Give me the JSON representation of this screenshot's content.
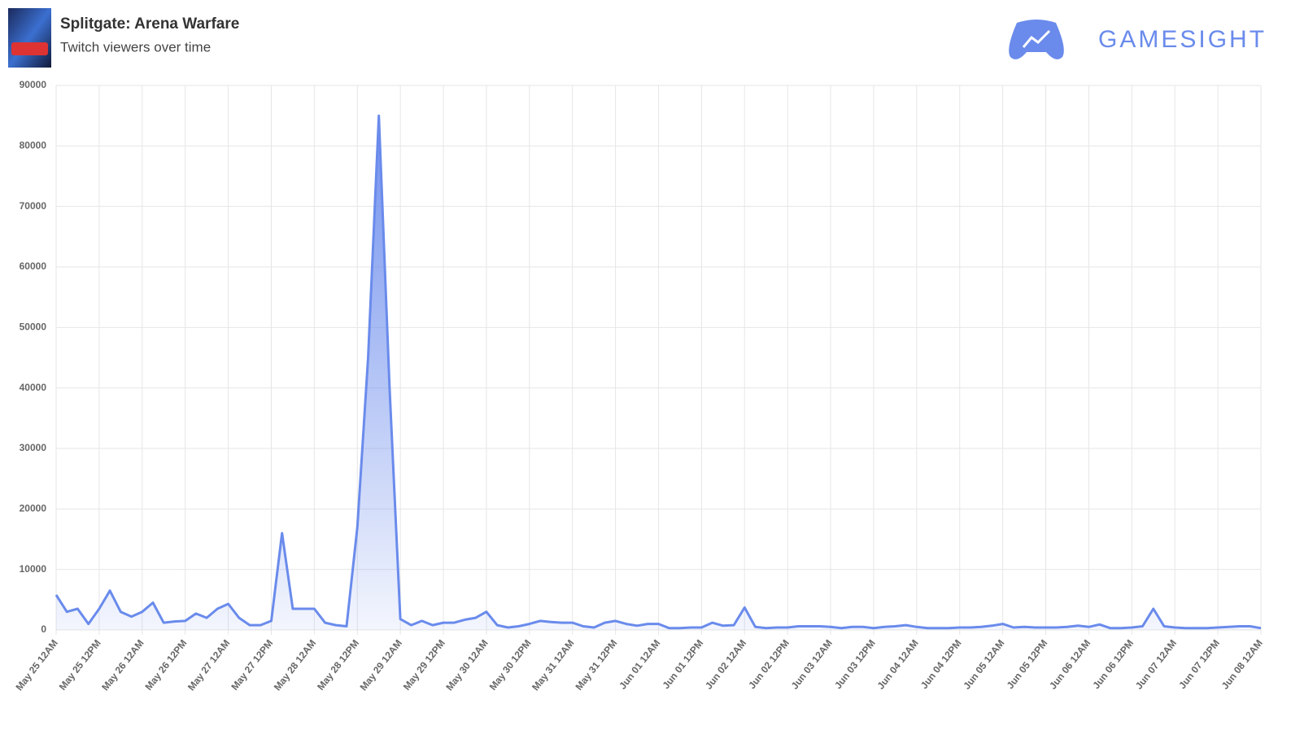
{
  "brand": "GAMESIGHT",
  "chart_data": {
    "type": "line",
    "title": "Splitgate: Arena Warfare",
    "subtitle": "Twitch viewers over time",
    "categories": [
      "May 25 12AM",
      null,
      null,
      null,
      "May 25 12PM",
      null,
      null,
      null,
      "May 26 12AM",
      null,
      null,
      null,
      "May 26 12PM",
      null,
      null,
      null,
      "May 27 12AM",
      null,
      null,
      null,
      "May 27 12PM",
      null,
      null,
      null,
      "May 28 12AM",
      null,
      null,
      null,
      "May 28 12PM",
      null,
      null,
      null,
      "May 29 12AM",
      null,
      null,
      null,
      "May 29 12PM",
      null,
      null,
      null,
      "May 30 12AM",
      null,
      null,
      null,
      "May 30 12PM",
      null,
      null,
      null,
      "May 31 12AM",
      null,
      null,
      null,
      "May 31 12PM",
      null,
      null,
      null,
      "Jun 01 12AM",
      null,
      null,
      null,
      "Jun 01 12PM",
      null,
      null,
      null,
      "Jun 02 12AM",
      null,
      null,
      null,
      "Jun 02 12PM",
      null,
      null,
      null,
      "Jun 03 12AM",
      null,
      null,
      null,
      "Jun 03 12PM",
      null,
      null,
      null,
      "Jun 04 12AM",
      null,
      null,
      null,
      "Jun 04 12PM",
      null,
      null,
      null,
      "Jun 05 12AM",
      null,
      null,
      null,
      "Jun 05 12PM",
      null,
      null,
      null,
      "Jun 06 12AM",
      null,
      null,
      null,
      "Jun 06 12PM",
      null,
      null,
      null,
      "Jun 07 12AM",
      null,
      null,
      null,
      "Jun 07 12PM",
      null,
      null,
      null,
      "Jun 08 12AM"
    ],
    "values": [
      5800,
      3000,
      3500,
      1000,
      3500,
      6500,
      3000,
      2200,
      3000,
      4500,
      1200,
      1400,
      1500,
      2700,
      2000,
      3500,
      4300,
      2000,
      800,
      800,
      1500,
      16000,
      3500,
      3500,
      3500,
      1200,
      800,
      600,
      17000,
      45000,
      85000,
      40000,
      1800,
      800,
      1500,
      800,
      1200,
      1200,
      1700,
      2000,
      3000,
      800,
      400,
      600,
      1000,
      1500,
      1300,
      1200,
      1200,
      600,
      400,
      1200,
      1500,
      1000,
      700,
      1000,
      1000,
      300,
      300,
      400,
      400,
      1200,
      700,
      800,
      3700,
      500,
      300,
      400,
      400,
      600,
      600,
      600,
      500,
      300,
      500,
      500,
      300,
      500,
      600,
      800,
      500,
      300,
      300,
      300,
      400,
      400,
      500,
      700,
      1000,
      400,
      500,
      400,
      400,
      400,
      500,
      700,
      500,
      900,
      300,
      300,
      400,
      600,
      3500,
      600,
      400,
      300,
      300,
      300,
      400,
      500,
      600,
      600,
      300
    ],
    "color": "#6a8bec",
    "ylim": [
      0,
      90000
    ],
    "yticks": [
      0,
      10000,
      20000,
      30000,
      40000,
      50000,
      60000,
      70000,
      80000,
      90000
    ],
    "grid": true
  }
}
